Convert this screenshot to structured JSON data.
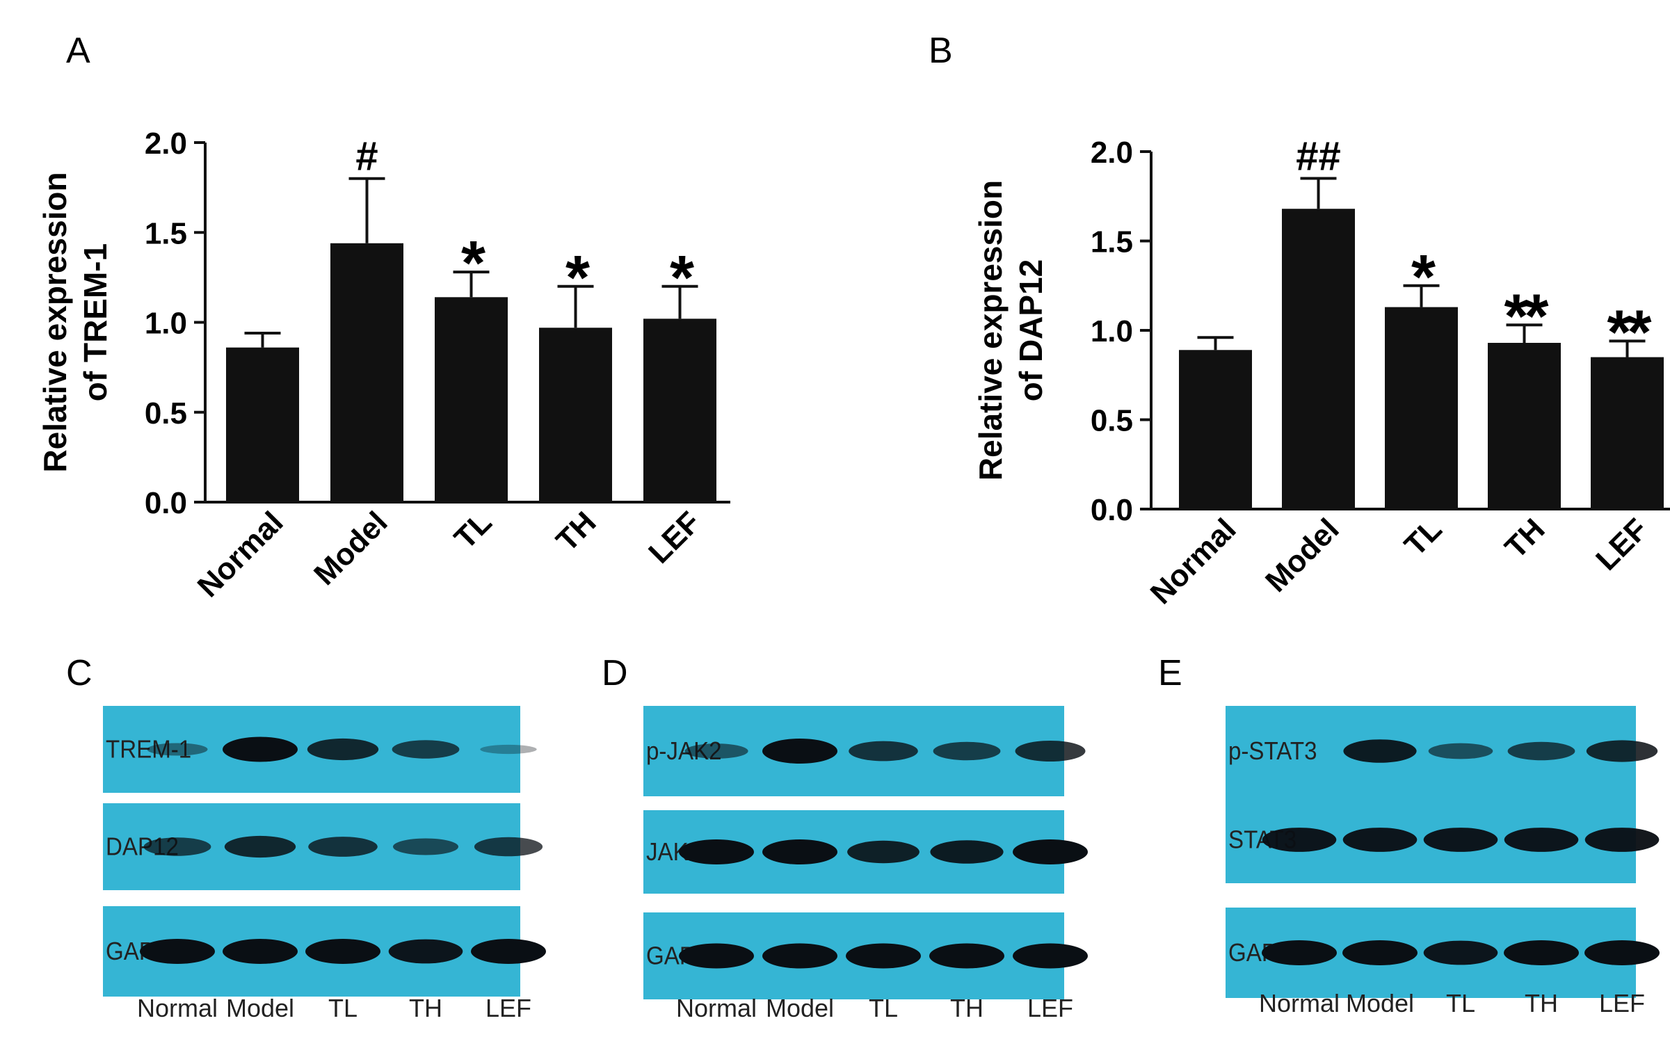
{
  "panels": {
    "A": "A",
    "B": "B",
    "C": "C",
    "D": "D",
    "E": "E"
  },
  "chart_data": [
    {
      "type": "bar",
      "panel": "A",
      "categories": [
        "Normal",
        "Model",
        "TL",
        "TH",
        "LEF"
      ],
      "values": [
        0.86,
        1.44,
        1.14,
        0.97,
        1.02
      ],
      "errors": [
        0.08,
        0.36,
        0.14,
        0.23,
        0.18
      ],
      "significance": [
        "",
        "#",
        "*",
        "*",
        "*"
      ],
      "ylabel_line1": "Relative expression",
      "ylabel_line2": "of TREM-1",
      "ylim": [
        0,
        2.0
      ],
      "yticks": [
        "0.0",
        "0.5",
        "1.0",
        "1.5",
        "2.0"
      ],
      "bar_color": "#111111"
    },
    {
      "type": "bar",
      "panel": "B",
      "categories": [
        "Normal",
        "Model",
        "TL",
        "TH",
        "LEF"
      ],
      "values": [
        0.89,
        1.68,
        1.13,
        0.93,
        0.85
      ],
      "errors": [
        0.07,
        0.17,
        0.12,
        0.1,
        0.09
      ],
      "significance": [
        "",
        "##",
        "*",
        "**",
        "**"
      ],
      "ylabel_line1": "Relative expression",
      "ylabel_line2": "of DAP12",
      "ylim": [
        0,
        2.0
      ],
      "yticks": [
        "0.0",
        "0.5",
        "1.0",
        "1.5",
        "2.0"
      ],
      "bar_color": "#111111"
    }
  ],
  "blots": [
    {
      "panel": "C",
      "rows": [
        {
          "label": "TREM-1",
          "intensity": [
            0.25,
            1.0,
            0.8,
            0.6,
            0.05
          ]
        },
        {
          "label": "DAP12",
          "intensity": [
            0.6,
            0.8,
            0.7,
            0.5,
            0.65
          ]
        },
        {
          "label": "GAPDH",
          "intensity": [
            1.0,
            1.0,
            1.0,
            0.95,
            1.0
          ]
        }
      ],
      "lanes": [
        "Normal",
        "Model",
        "TL",
        "TH",
        "LEF"
      ]
    },
    {
      "panel": "D",
      "rows": [
        {
          "label": "p-JAK2",
          "intensity": [
            0.4,
            1.0,
            0.7,
            0.6,
            0.75
          ]
        },
        {
          "label": "JAK2",
          "intensity": [
            1.0,
            1.0,
            0.85,
            0.9,
            1.0
          ]
        },
        {
          "label": "GAPDH",
          "intensity": [
            1.0,
            1.0,
            1.0,
            1.0,
            1.0
          ]
        }
      ],
      "lanes": [
        "Normal",
        "Model",
        "TL",
        "TH",
        "LEF"
      ]
    },
    {
      "panel": "E",
      "rows": [
        {
          "label": "p-STAT3",
          "intensity": [
            0.0,
            0.9,
            0.45,
            0.6,
            0.8
          ]
        },
        {
          "label": "STAT3",
          "intensity": [
            0.95,
            0.95,
            0.95,
            0.95,
            0.95
          ]
        },
        {
          "label": "GAPDH",
          "intensity": [
            1.0,
            1.0,
            0.95,
            1.0,
            1.0
          ]
        }
      ],
      "lanes": [
        "Normal",
        "Model",
        "TL",
        "TH",
        "LEF"
      ]
    }
  ],
  "colors": {
    "membrane": "#35b5d4",
    "band": "#0a0f14",
    "bar": "#111111"
  }
}
